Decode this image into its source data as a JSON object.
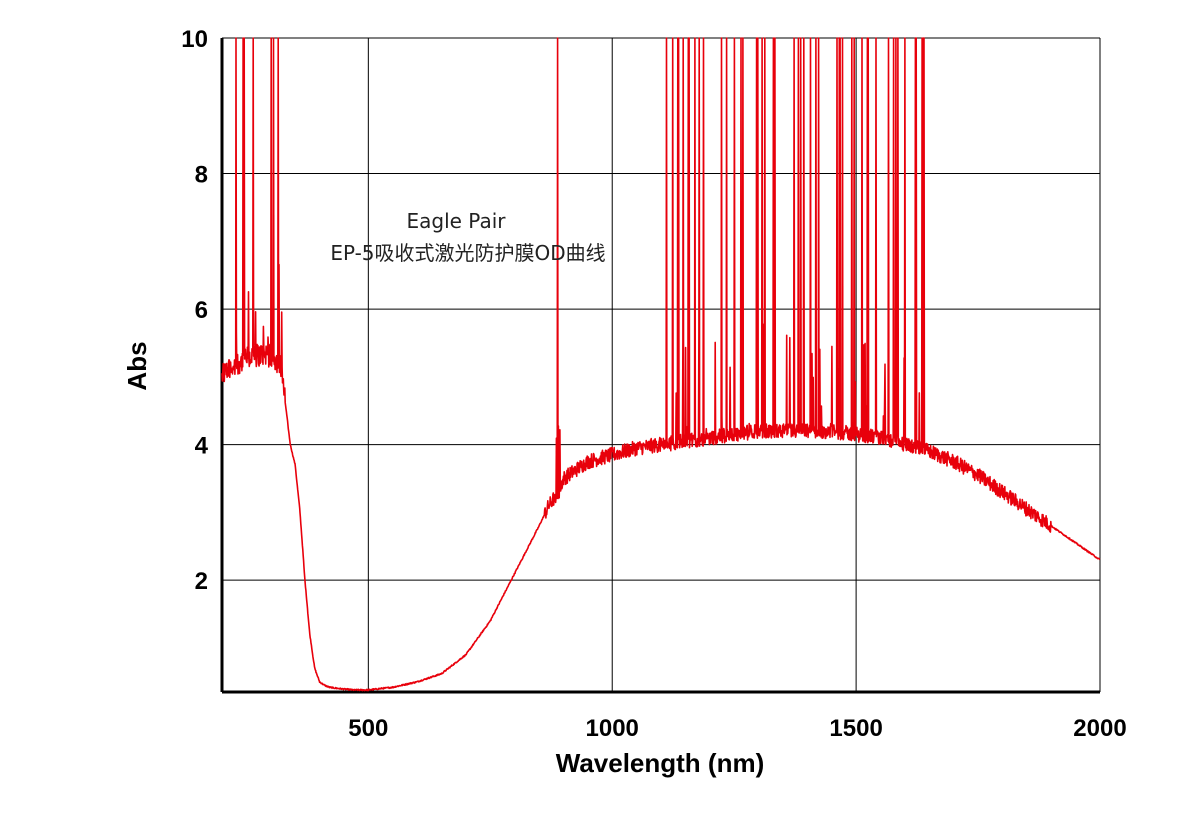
{
  "chart_data": {
    "type": "line",
    "title": "",
    "annotation_lines": [
      "Eagle Pair",
      "EP-5吸收式激光防护膜OD曲线"
    ],
    "xlabel": "Wavelength (nm)",
    "ylabel": "Abs",
    "xlim": [
      200,
      2000
    ],
    "ylim": [
      0.35,
      10
    ],
    "x_ticks": [
      500,
      1000,
      1500,
      2000
    ],
    "x_tick_labels": [
      "500",
      "1000",
      "1500",
      "2000"
    ],
    "y_ticks": [
      2,
      4,
      6,
      8,
      10
    ],
    "y_tick_labels": [
      "2",
      "4",
      "6",
      "8",
      "10"
    ],
    "grid": true,
    "legend": false,
    "series_color": "#e8000b",
    "series": [
      {
        "x": [
          200,
          210,
          230,
          260,
          290,
          320,
          330,
          340,
          350,
          360,
          370,
          380,
          390,
          400,
          410,
          420,
          440,
          470,
          500,
          550,
          600,
          650,
          700,
          750,
          800,
          850,
          870,
          880,
          890,
          900,
          950,
          1000,
          1050,
          1100,
          1150,
          1200,
          1250,
          1300,
          1350,
          1400,
          1450,
          1500,
          1550,
          1600,
          1650,
          1700,
          1750,
          1800,
          1850,
          1900,
          1950,
          2000
        ],
        "y": [
          5.0,
          5.1,
          5.2,
          5.3,
          5.35,
          5.2,
          4.6,
          4.0,
          3.7,
          3.0,
          2.0,
          1.2,
          0.7,
          0.5,
          0.45,
          0.42,
          0.4,
          0.38,
          0.38,
          0.42,
          0.5,
          0.62,
          0.9,
          1.4,
          2.1,
          2.8,
          3.1,
          3.2,
          3.3,
          3.5,
          3.75,
          3.85,
          3.95,
          4.0,
          4.05,
          4.1,
          4.15,
          4.2,
          4.2,
          4.2,
          4.2,
          4.15,
          4.1,
          4.0,
          3.9,
          3.75,
          3.55,
          3.3,
          3.05,
          2.8,
          2.55,
          2.3
        ]
      }
    ],
    "saturated_spike_regions": [
      [
        220,
        325
      ],
      [
        880,
        895
      ],
      [
        1095,
        1640
      ]
    ]
  }
}
